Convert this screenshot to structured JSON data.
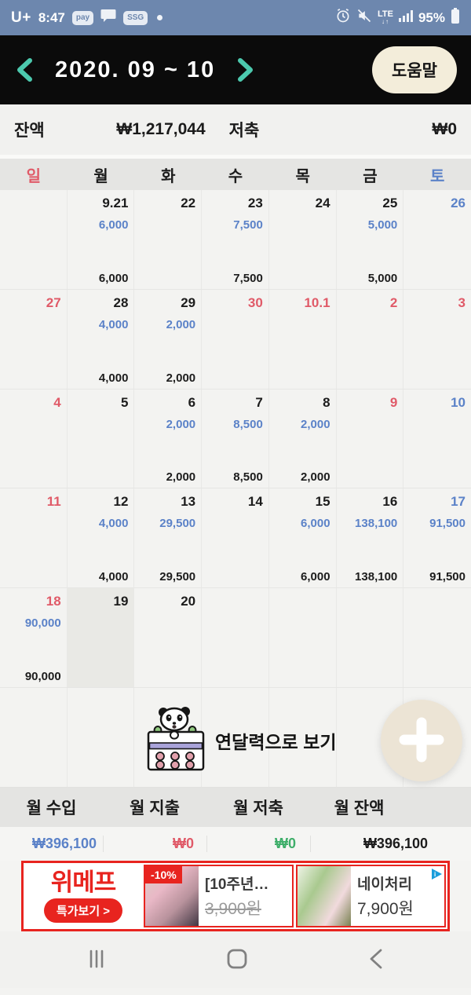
{
  "status_bar": {
    "carrier": "U+",
    "time": "8:47",
    "pay_badge": "pay",
    "ssg_badge": "SSG",
    "network": "LTE",
    "battery_percent": "95%"
  },
  "header": {
    "title": "2020. 09 ~ 10",
    "help_button": "도움말"
  },
  "balance_bar": {
    "balance_label": "잔액",
    "balance_value": "₩1,217,044",
    "savings_label": "저축",
    "savings_value": "₩0"
  },
  "calendar": {
    "day_headers": [
      {
        "label": "일",
        "color": "red"
      },
      {
        "label": "월",
        "color": "black"
      },
      {
        "label": "화",
        "color": "black"
      },
      {
        "label": "수",
        "color": "black"
      },
      {
        "label": "목",
        "color": "black"
      },
      {
        "label": "금",
        "color": "black"
      },
      {
        "label": "토",
        "color": "blue"
      }
    ],
    "weeks": [
      [
        {},
        {
          "date": "9.21",
          "date_color": "black",
          "amount": "6,000",
          "total": "6,000"
        },
        {
          "date": "22",
          "date_color": "black"
        },
        {
          "date": "23",
          "date_color": "black",
          "amount": "7,500",
          "total": "7,500"
        },
        {
          "date": "24",
          "date_color": "black"
        },
        {
          "date": "25",
          "date_color": "black",
          "amount": "5,000",
          "total": "5,000"
        },
        {
          "date": "26",
          "date_color": "blue"
        }
      ],
      [
        {
          "date": "27",
          "date_color": "red"
        },
        {
          "date": "28",
          "date_color": "black",
          "amount": "4,000",
          "total": "4,000"
        },
        {
          "date": "29",
          "date_color": "black",
          "amount": "2,000",
          "total": "2,000"
        },
        {
          "date": "30",
          "date_color": "red"
        },
        {
          "date": "10.1",
          "date_color": "red"
        },
        {
          "date": "2",
          "date_color": "red"
        },
        {
          "date": "3",
          "date_color": "red"
        }
      ],
      [
        {
          "date": "4",
          "date_color": "red"
        },
        {
          "date": "5",
          "date_color": "black"
        },
        {
          "date": "6",
          "date_color": "black",
          "amount": "2,000",
          "total": "2,000"
        },
        {
          "date": "7",
          "date_color": "black",
          "amount": "8,500",
          "total": "8,500"
        },
        {
          "date": "8",
          "date_color": "black",
          "amount": "2,000",
          "total": "2,000"
        },
        {
          "date": "9",
          "date_color": "red"
        },
        {
          "date": "10",
          "date_color": "blue"
        }
      ],
      [
        {
          "date": "11",
          "date_color": "red"
        },
        {
          "date": "12",
          "date_color": "black",
          "amount": "4,000",
          "total": "4,000"
        },
        {
          "date": "13",
          "date_color": "black",
          "amount": "29,500",
          "total": "29,500"
        },
        {
          "date": "14",
          "date_color": "black"
        },
        {
          "date": "15",
          "date_color": "black",
          "amount": "6,000",
          "total": "6,000"
        },
        {
          "date": "16",
          "date_color": "black",
          "amount": "138,100",
          "total": "138,100"
        },
        {
          "date": "17",
          "date_color": "blue",
          "amount": "91,500",
          "total": "91,500"
        }
      ],
      [
        {
          "date": "18",
          "date_color": "red",
          "amount": "90,000",
          "total": "90,000"
        },
        {
          "date": "19",
          "date_color": "black",
          "today": true
        },
        {
          "date": "20",
          "date_color": "black"
        },
        {},
        {},
        {},
        {}
      ],
      [
        {},
        {},
        {},
        {},
        {},
        {},
        {}
      ]
    ]
  },
  "year_view_button": {
    "label": "연달력으로 보기"
  },
  "monthly_summary": {
    "columns": [
      {
        "label": "월 수입",
        "value": "₩396,100",
        "color": "blue"
      },
      {
        "label": "월 지출",
        "value": "₩0",
        "color": "red"
      },
      {
        "label": "월 저축",
        "value": "₩0",
        "color": "green"
      },
      {
        "label": "월 잔액",
        "value": "₩396,100",
        "color": "black"
      }
    ]
  },
  "ad_banner": {
    "brand": "위메프",
    "cta": "특가보기 >",
    "items": [
      {
        "discount_badge": "-10%",
        "title": "[10주년…",
        "price": "3,900원"
      },
      {
        "title": "네이처리",
        "price": "7,900원"
      }
    ]
  },
  "colors": {
    "accent_teal": "#4cc9ae",
    "status_bar_blue": "#6d87ae",
    "date_red": "#e05a68",
    "amount_blue": "#5b82c8",
    "savings_green": "#3fae6a",
    "ad_red": "#e8241f",
    "cream_button": "#f3edda"
  }
}
